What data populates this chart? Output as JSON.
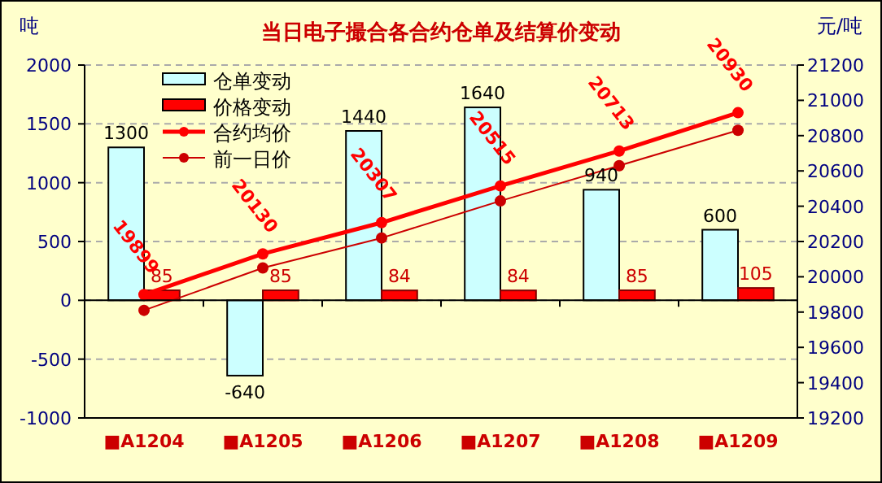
{
  "chart_data": {
    "type": "bar",
    "title": "当日电子撮合各合约仓单及结算价变动",
    "ylabel": "吨",
    "y2label": "元/吨",
    "categories": [
      "■A1204",
      "■A1205",
      "■A1206",
      "■A1207",
      "■A1208",
      "■A1209"
    ],
    "series": [
      {
        "name": "仓单变动",
        "color": "#ccffff",
        "values": [
          1300,
          -640,
          1440,
          1640,
          940,
          600
        ],
        "value_labels": [
          "1300",
          "-640",
          "1440",
          "1640",
          "940",
          "600"
        ]
      },
      {
        "name": "价格变动",
        "color": "#ff0000",
        "values": [
          85,
          85,
          84,
          84,
          85,
          105
        ],
        "value_labels": [
          "85",
          "85",
          "84",
          "84",
          "85",
          "105"
        ]
      },
      {
        "name": "合约均价",
        "type": "line",
        "axis": "y2",
        "color": "#ff0000",
        "marker": "circle",
        "values": [
          19899,
          20130,
          20307,
          20515,
          20713,
          20930
        ],
        "value_labels": [
          "19899",
          "20130",
          "20307",
          "20515",
          "20713",
          "20930"
        ]
      },
      {
        "name": "前一日价",
        "type": "line",
        "axis": "y2",
        "color": "#cc0000",
        "marker": "circle",
        "values": [
          19810,
          20050,
          20220,
          20430,
          20630,
          20830
        ]
      }
    ],
    "ylim": [
      -1000,
      2000
    ],
    "yticks": [
      -1000,
      -500,
      0,
      500,
      1000,
      1500,
      2000
    ],
    "y2lim": [
      19200,
      21200
    ],
    "y2ticks": [
      19200,
      19400,
      19600,
      19800,
      20000,
      20200,
      20400,
      20600,
      20800,
      21000,
      21200
    ],
    "grid": "y",
    "legend": "top left"
  }
}
